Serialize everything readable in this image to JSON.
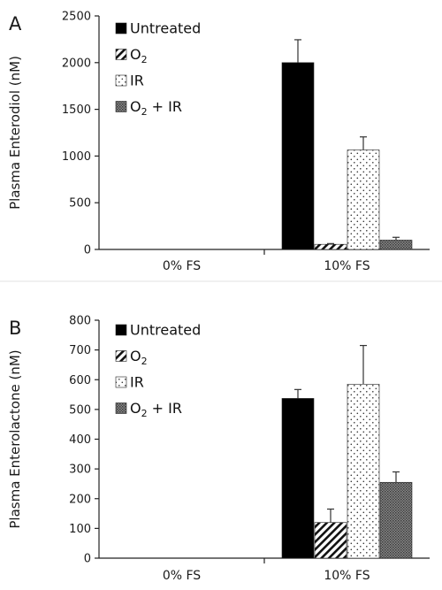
{
  "legend": {
    "items": [
      {
        "key": "untreated",
        "label": "Untreated",
        "pattern": "solid"
      },
      {
        "key": "o2",
        "label": "O",
        "sub": "2",
        "pattern": "hatch"
      },
      {
        "key": "ir",
        "label": "IR",
        "pattern": "dots"
      },
      {
        "key": "o2ir",
        "label": "O",
        "sub": "2",
        "suffix": " + IR",
        "pattern": "dense"
      }
    ]
  },
  "chart_data": [
    {
      "panel_label": "A",
      "type": "bar",
      "ylabel": "Plasma Enterodiol (nM)",
      "xlabel": "",
      "categories": [
        "0% FS",
        "10% FS"
      ],
      "ylim": [
        0,
        2500
      ],
      "yticks": [
        0,
        500,
        1000,
        1500,
        2000,
        2500
      ],
      "grid": false,
      "legend_position": "top-left",
      "series": [
        {
          "name": "Untreated",
          "values": [
            0,
            2000
          ],
          "errors": [
            0,
            245
          ]
        },
        {
          "name": "O2",
          "values": [
            0,
            55
          ],
          "errors": [
            0,
            8
          ]
        },
        {
          "name": "IR",
          "values": [
            0,
            1065
          ],
          "errors": [
            0,
            140
          ]
        },
        {
          "name": "O2 + IR",
          "values": [
            0,
            100
          ],
          "errors": [
            0,
            30
          ]
        }
      ]
    },
    {
      "panel_label": "B",
      "type": "bar",
      "ylabel": "Plasma Enterolactone (nM)",
      "xlabel": "",
      "categories": [
        "0% FS",
        "10% FS"
      ],
      "ylim": [
        0,
        800
      ],
      "yticks": [
        0,
        100,
        200,
        300,
        400,
        500,
        600,
        700,
        800
      ],
      "grid": false,
      "legend_position": "top-left",
      "series": [
        {
          "name": "Untreated",
          "values": [
            0,
            537
          ],
          "errors": [
            0,
            30
          ]
        },
        {
          "name": "O2",
          "values": [
            0,
            120
          ],
          "errors": [
            0,
            45
          ]
        },
        {
          "name": "IR",
          "values": [
            0,
            585
          ],
          "errors": [
            0,
            130
          ]
        },
        {
          "name": "O2 + IR",
          "values": [
            0,
            255
          ],
          "errors": [
            0,
            35
          ]
        }
      ]
    }
  ]
}
